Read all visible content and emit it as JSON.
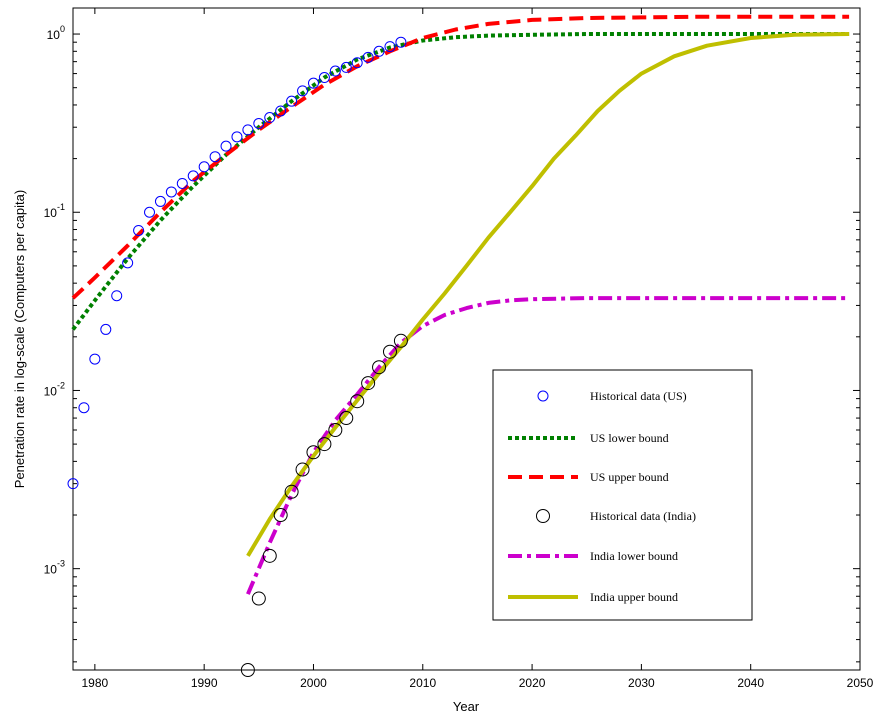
{
  "chart_data": {
    "type": "line",
    "title": "",
    "xlabel": "Year",
    "ylabel": "Penetration rate in log-scale (Computers per capita)",
    "x_range": [
      1978,
      2050
    ],
    "y_range": [
      0.00027,
      1.4
    ],
    "y_scale": "log",
    "grid": false,
    "legend_position": "bottom-right",
    "x_ticks": [
      1980,
      1990,
      2000,
      2010,
      2020,
      2030,
      2040,
      2050
    ],
    "y_ticks": [
      {
        "value": 0.001,
        "base": "10",
        "exp": "-3"
      },
      {
        "value": 0.01,
        "base": "10",
        "exp": "-2"
      },
      {
        "value": 0.1,
        "base": "10",
        "exp": "-1"
      },
      {
        "value": 1,
        "base": "10",
        "exp": "0"
      }
    ],
    "series": [
      {
        "name": "Historical data (US)",
        "kind": "markers",
        "color": "#0000ff",
        "x": [
          1978,
          1979,
          1980,
          1981,
          1982,
          1983,
          1984,
          1985,
          1986,
          1987,
          1988,
          1989,
          1990,
          1991,
          1992,
          1993,
          1994,
          1995,
          1996,
          1997,
          1998,
          1999,
          2000,
          2001,
          2002,
          2003,
          2004,
          2005,
          2006,
          2007,
          2008
        ],
        "y": [
          0.003,
          0.008,
          0.015,
          0.022,
          0.034,
          0.052,
          0.079,
          0.1,
          0.115,
          0.13,
          0.145,
          0.16,
          0.18,
          0.205,
          0.235,
          0.265,
          0.29,
          0.315,
          0.34,
          0.37,
          0.42,
          0.48,
          0.53,
          0.57,
          0.62,
          0.65,
          0.69,
          0.74,
          0.8,
          0.85,
          0.9
        ]
      },
      {
        "name": "US lower bound",
        "kind": "dotted",
        "color": "#008000",
        "x": [
          1978,
          1980,
          1983,
          1986,
          1989,
          1992,
          1995,
          1998,
          2001,
          2004,
          2007,
          2010,
          2013,
          2016,
          2020,
          2025,
          2030,
          2035,
          2040,
          2045,
          2049
        ],
        "y": [
          0.022,
          0.032,
          0.055,
          0.09,
          0.14,
          0.21,
          0.3,
          0.42,
          0.57,
          0.72,
          0.84,
          0.92,
          0.96,
          0.98,
          0.99,
          1.0,
          1.0,
          1.0,
          1.0,
          1.0,
          1.0
        ]
      },
      {
        "name": "US upper bound",
        "kind": "dashed",
        "color": "#ff0000",
        "x": [
          1978,
          1980,
          1983,
          1986,
          1989,
          1992,
          1995,
          1998,
          2001,
          2004,
          2007,
          2010,
          2013,
          2016,
          2020,
          2025,
          2030,
          2035,
          2040,
          2045,
          2049
        ],
        "y": [
          0.033,
          0.043,
          0.065,
          0.1,
          0.15,
          0.21,
          0.29,
          0.39,
          0.52,
          0.66,
          0.8,
          0.95,
          1.06,
          1.14,
          1.2,
          1.23,
          1.24,
          1.25,
          1.25,
          1.25,
          1.25
        ]
      },
      {
        "name": "Historical data (India)",
        "kind": "markers",
        "color": "#000000",
        "x": [
          1994,
          1995,
          1996,
          1997,
          1998,
          1999,
          2000,
          2001,
          2002,
          2003,
          2004,
          2005,
          2006,
          2007,
          2008
        ],
        "y": [
          0.00027,
          0.00068,
          0.00118,
          0.002,
          0.0027,
          0.0036,
          0.0045,
          0.005,
          0.006,
          0.007,
          0.0087,
          0.011,
          0.0135,
          0.0165,
          0.019
        ]
      },
      {
        "name": "India lower bound",
        "kind": "dashdot",
        "color": "#cc00cc",
        "x": [
          1994,
          1996,
          1998,
          2000,
          2002,
          2004,
          2006,
          2008,
          2010,
          2012,
          2014,
          2016,
          2018,
          2020,
          2025,
          2030,
          2035,
          2040,
          2045,
          2049
        ],
        "y": [
          0.00072,
          0.0014,
          0.0026,
          0.0045,
          0.0068,
          0.0095,
          0.0135,
          0.0185,
          0.023,
          0.0265,
          0.029,
          0.031,
          0.032,
          0.0325,
          0.033,
          0.033,
          0.033,
          0.033,
          0.033,
          0.033
        ]
      },
      {
        "name": "India upper bound",
        "kind": "solid",
        "color": "#bfbf00",
        "x": [
          1994,
          1996,
          1998,
          2000,
          2002,
          2004,
          2006,
          2008,
          2010,
          2012,
          2014,
          2016,
          2018,
          2020,
          2022,
          2024,
          2026,
          2028,
          2030,
          2033,
          2036,
          2040,
          2044,
          2049
        ],
        "y": [
          0.00118,
          0.0019,
          0.0029,
          0.0043,
          0.0062,
          0.0088,
          0.0125,
          0.0175,
          0.025,
          0.035,
          0.05,
          0.072,
          0.1,
          0.14,
          0.2,
          0.27,
          0.37,
          0.48,
          0.6,
          0.75,
          0.86,
          0.95,
          0.99,
          1.0
        ]
      }
    ]
  }
}
